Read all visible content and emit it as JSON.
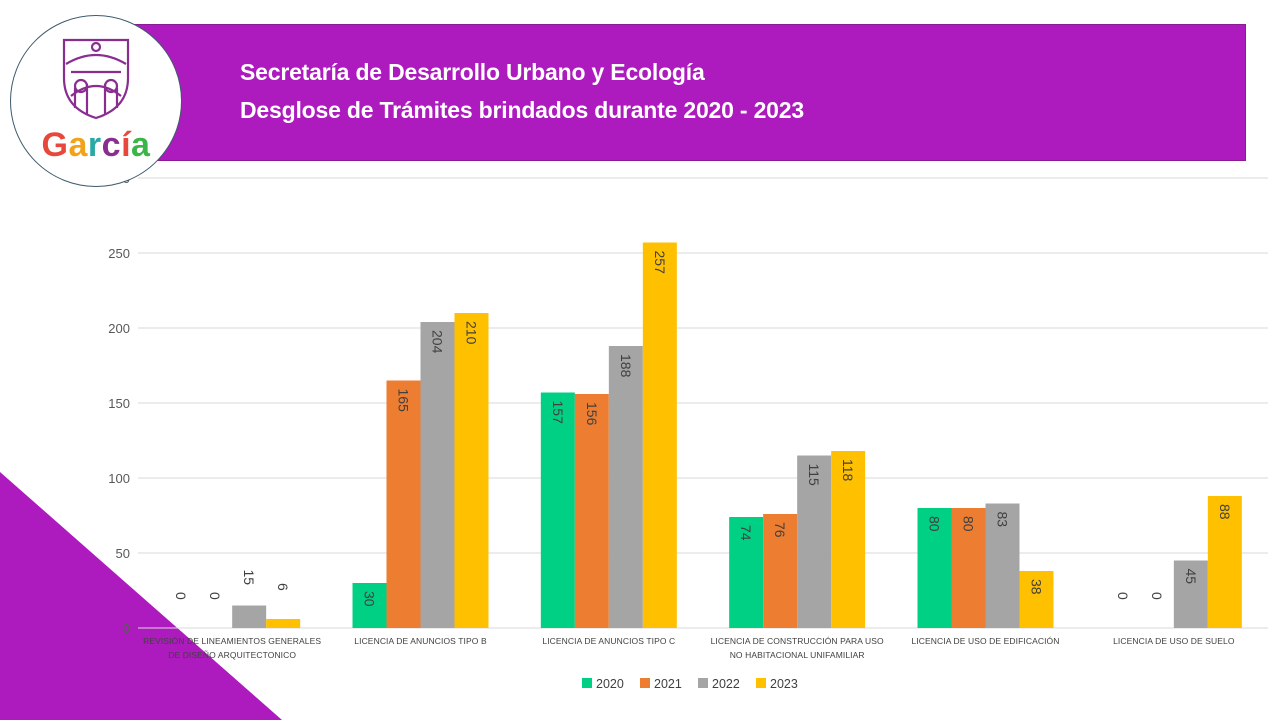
{
  "header": {
    "title_line1": "Secretaría de Desarrollo Urbano y Ecología",
    "title_line2": "Desglose de Trámites brindados durante 2020 - 2023",
    "bg_color": "#ad1bbe"
  },
  "logo": {
    "text": "García",
    "letters": [
      {
        "ch": "G",
        "color": "#e8483b"
      },
      {
        "ch": "a",
        "color": "#f2a31b"
      },
      {
        "ch": "r",
        "color": "#29a9a3"
      },
      {
        "ch": "c",
        "color": "#8a2d91"
      },
      {
        "ch": "í",
        "color": "#e8483b"
      },
      {
        "ch": "a",
        "color": "#3bb54a"
      }
    ],
    "shield_color": "#8a2d91",
    "icon": "garcia-shield-icon"
  },
  "chart_data": {
    "type": "bar",
    "categories": [
      "REVISIÓN DE LINEAMIENTOS GENERALES DE DISEÑO ARQUITECTONICO",
      "LICENCIA DE ANUNCIOS TIPO B",
      "LICENCIA DE ANUNCIOS TIPO C",
      "LICENCIA DE CONSTRUCCIÓN PARA USO NO HABITACIONAL UNIFAMILIAR",
      "LICENCIA DE USO DE EDIFICACIÓN",
      "LICENCIA DE USO DE SUELO"
    ],
    "category_lines": [
      [
        "REVISIÓN DE LINEAMIENTOS GENERALES",
        "DE DISEÑO ARQUITECTONICO"
      ],
      [
        "LICENCIA DE ANUNCIOS TIPO B"
      ],
      [
        "LICENCIA DE ANUNCIOS TIPO C"
      ],
      [
        "LICENCIA DE CONSTRUCCIÓN PARA USO",
        "NO HABITACIONAL UNIFAMILIAR"
      ],
      [
        "LICENCIA DE USO DE EDIFICACIÓN"
      ],
      [
        "LICENCIA DE USO DE SUELO"
      ]
    ],
    "series": [
      {
        "name": "2020",
        "color": "#00d084",
        "values": [
          0,
          30,
          157,
          74,
          80,
          0
        ]
      },
      {
        "name": "2021",
        "color": "#ed7d31",
        "values": [
          0,
          165,
          156,
          76,
          80,
          0
        ]
      },
      {
        "name": "2022",
        "color": "#a5a5a5",
        "values": [
          15,
          204,
          188,
          115,
          83,
          45
        ]
      },
      {
        "name": "2023",
        "color": "#ffc000",
        "values": [
          6,
          210,
          257,
          118,
          38,
          88
        ]
      }
    ],
    "ylim": [
      0,
      300
    ],
    "yticks": [
      0,
      50,
      100,
      150,
      200,
      250,
      300
    ],
    "grid": true,
    "legend": "bottom",
    "data_labels": "vertical"
  },
  "decor": {
    "corner_color": "#ad1bbe"
  }
}
